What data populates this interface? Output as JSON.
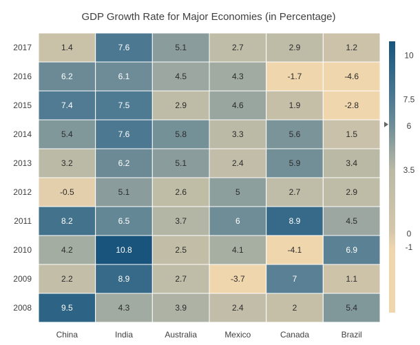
{
  "chart_data": {
    "type": "heatmap",
    "title": "GDP Growth Rate for Major Economies (in Percentage)",
    "x_categories": [
      "China",
      "India",
      "Australia",
      "Mexico",
      "Canada",
      "Brazil"
    ],
    "y_categories": [
      "2017",
      "2016",
      "2015",
      "2014",
      "2013",
      "2012",
      "2011",
      "2010",
      "2009",
      "2008"
    ],
    "values": [
      [
        1.4,
        7.6,
        5.1,
        2.7,
        2.9,
        1.2
      ],
      [
        6.2,
        6.1,
        4.5,
        4.3,
        -1.7,
        -4.6
      ],
      [
        7.4,
        7.5,
        2.9,
        4.6,
        1.9,
        -2.8
      ],
      [
        5.4,
        7.6,
        5.8,
        3.3,
        5.6,
        1.5
      ],
      [
        3.2,
        6.2,
        5.1,
        2.4,
        5.9,
        3.4
      ],
      [
        -0.5,
        5.1,
        2.6,
        5,
        2.7,
        2.9
      ],
      [
        8.2,
        6.5,
        3.7,
        6,
        8.9,
        4.5
      ],
      [
        4.2,
        10.8,
        2.5,
        4.1,
        -4.1,
        6.9
      ],
      [
        2.2,
        8.9,
        2.7,
        -3.7,
        7,
        1.1
      ],
      [
        9.5,
        4.3,
        3.9,
        2.4,
        2,
        5.4
      ]
    ],
    "legend": {
      "position": "right",
      "range": [
        -4.6,
        10.8
      ],
      "labels": [
        "-1",
        "0",
        "3.5",
        "6",
        "7.5",
        "10"
      ],
      "stops": [
        {
          "value": -4.6,
          "color": "#F0D6AD"
        },
        {
          "value": -1,
          "color": "#F0D6AD"
        },
        {
          "value": 0,
          "color": "#D5C7AB"
        },
        {
          "value": 3.5,
          "color": "#B9B9A6"
        },
        {
          "value": 6,
          "color": "#6F8D97"
        },
        {
          "value": 7.5,
          "color": "#4E7A92"
        },
        {
          "value": 10.8,
          "color": "#18547C"
        }
      ]
    }
  }
}
